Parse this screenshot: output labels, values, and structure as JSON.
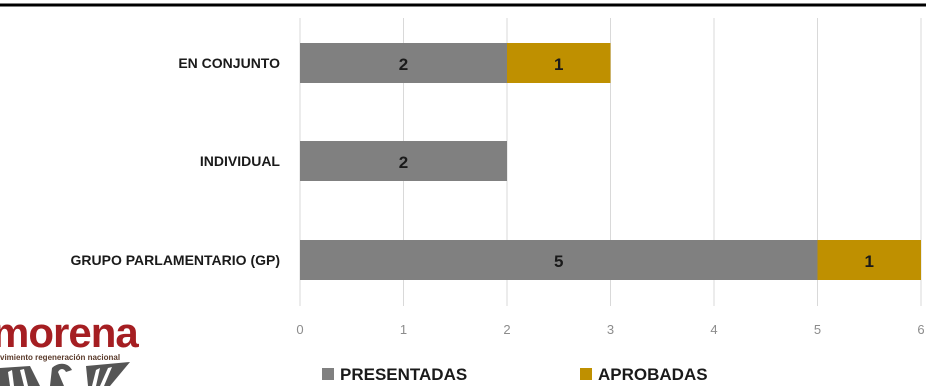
{
  "chart_data": {
    "type": "bar",
    "orientation": "horizontal",
    "stacked": true,
    "categories": [
      "EN CONJUNTO",
      "INDIVIDUAL",
      "GRUPO PARLAMENTARIO (GP)"
    ],
    "series": [
      {
        "name": "PRESENTADAS",
        "values": [
          2,
          2,
          5
        ],
        "color": "#808080"
      },
      {
        "name": "APROBADAS",
        "values": [
          1,
          0,
          1
        ],
        "color": "#bf9000"
      }
    ],
    "xlim": [
      0,
      6
    ],
    "xticks": [
      "0",
      "1",
      "2",
      "3",
      "4",
      "5",
      "6"
    ],
    "grid": true,
    "legend_position": "bottom"
  },
  "logo": {
    "name": "morena",
    "tagline": "movimiento regeneración nacional",
    "colors": {
      "name": "#a51e22",
      "emblem": "#555555"
    }
  }
}
